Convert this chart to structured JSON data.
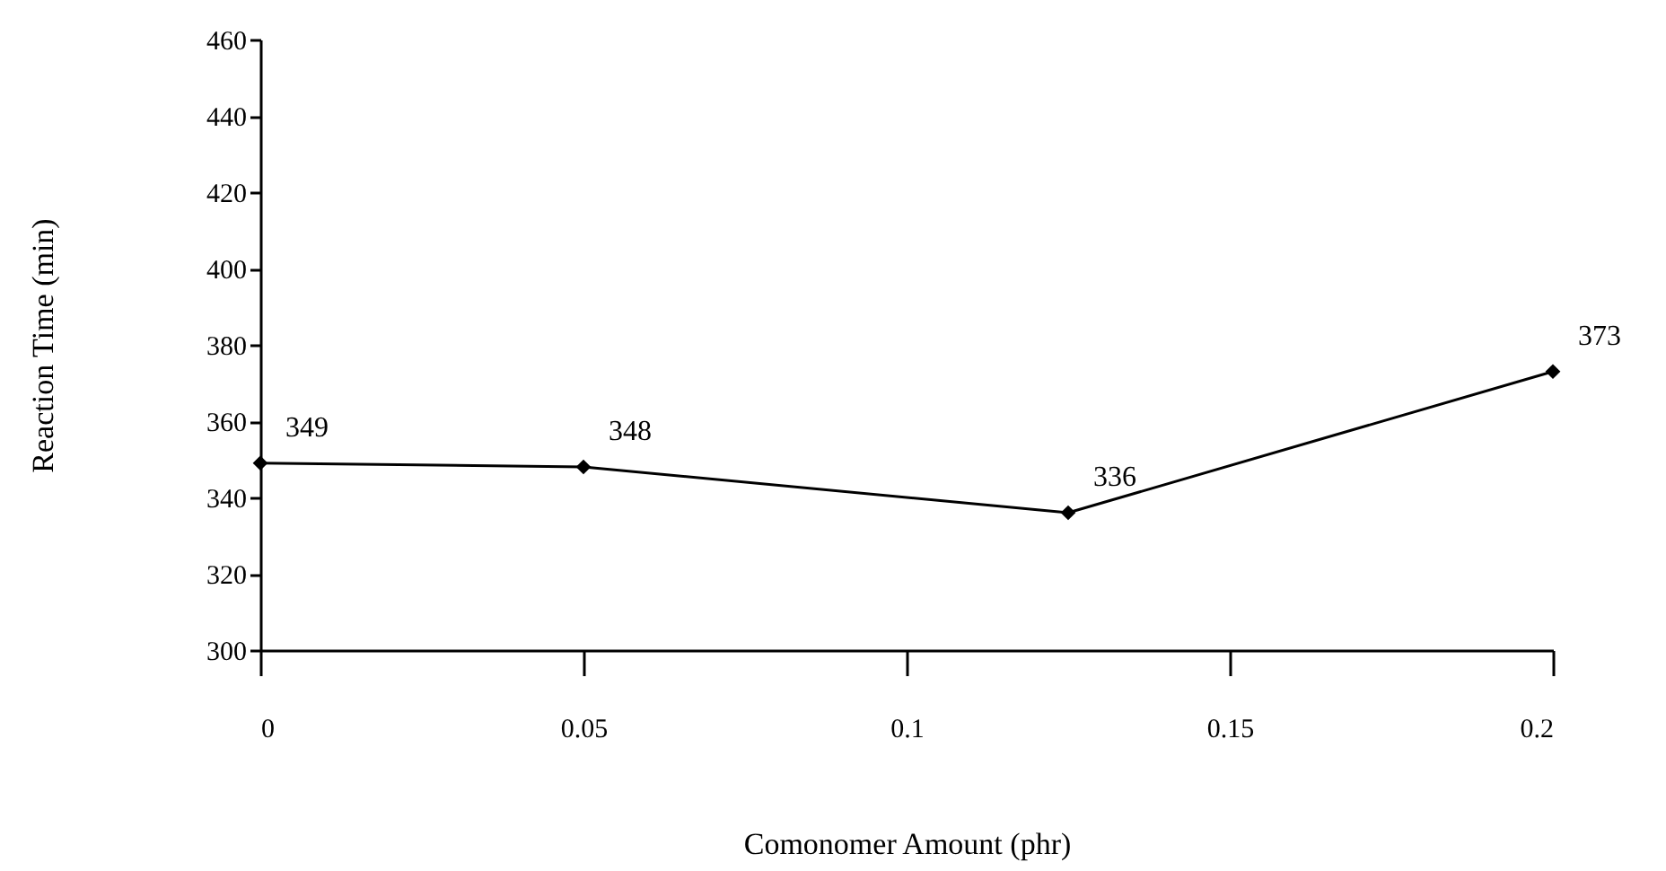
{
  "chart_data": {
    "type": "line",
    "xlabel": "Comonomer Amount (phr)",
    "ylabel": "Reaction Time (min)",
    "x": [
      0,
      0.05,
      0.125,
      0.2
    ],
    "series": [
      {
        "color": "#000000",
        "values": [
          349,
          348,
          336,
          373
        ]
      }
    ],
    "xlim": [
      0,
      0.2
    ],
    "xticks": [
      0,
      0.05,
      0.1,
      0.15,
      0.2
    ],
    "ylim": [
      300,
      460
    ],
    "yticks": [
      300,
      320,
      340,
      360,
      380,
      400,
      420,
      440,
      460
    ],
    "data_labels": true,
    "marker": "diamond",
    "line_style": "solid",
    "grid": false,
    "legend": false
  }
}
